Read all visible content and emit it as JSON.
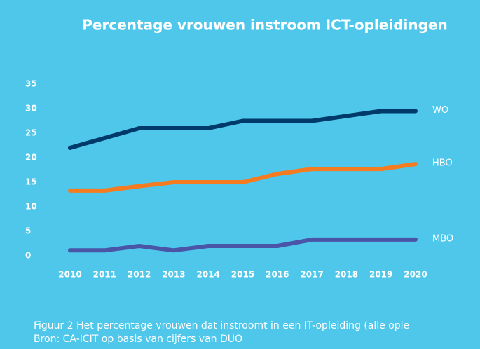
{
  "chart_data": {
    "type": "line",
    "title": "Percentage vrouwen instroom ICT-opleidingen",
    "categories": [
      "2010",
      "2011",
      "2012",
      "2013",
      "2014",
      "2015",
      "2016",
      "2017",
      "2018",
      "2019",
      "2020"
    ],
    "series": [
      {
        "name": "WO",
        "color": "#003a6b",
        "values": [
          22,
          24,
          26,
          26,
          26,
          27.5,
          27.5,
          27.5,
          28.5,
          29.5,
          29.5
        ]
      },
      {
        "name": "HBO",
        "color": "#f47b20",
        "values": [
          13.3,
          13.3,
          14.2,
          15,
          15,
          15,
          16.7,
          17.7,
          17.7,
          17.7,
          18.7
        ]
      },
      {
        "name": "MBO",
        "color": "#4a55a8",
        "values": [
          1.1,
          1.1,
          2,
          1.1,
          2,
          2,
          2,
          3.3,
          3.3,
          3.3,
          3.3
        ]
      }
    ],
    "ylim": [
      0,
      35
    ],
    "yticks": [
      0,
      5,
      10,
      15,
      20,
      25,
      30,
      35
    ],
    "grid": false,
    "caption": [
      "Figuur 2 Het percentage vrouwen dat instroomt in een IT-opleiding (alle ople",
      "Bron: CA-ICIT op basis van cijfers van DUO"
    ]
  }
}
